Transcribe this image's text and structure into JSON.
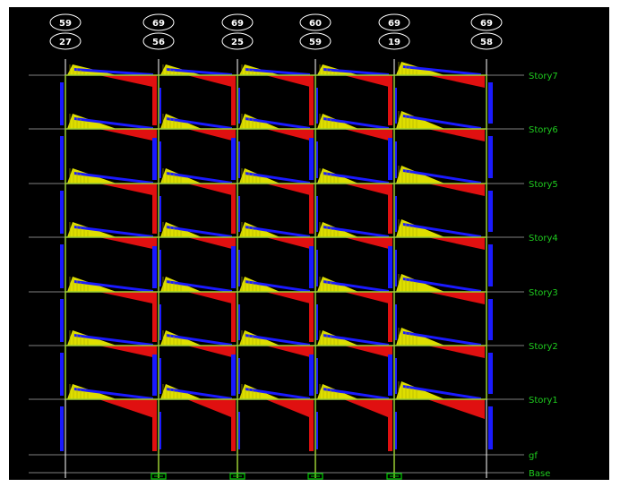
{
  "colors": {
    "background": "#000000",
    "frame_line": "#9acd32",
    "story_line": "#808080",
    "column_line": "#ffffff",
    "story_label": "#1fcc1f",
    "moment_positive": "#dede00",
    "moment_negative": "#e01010",
    "moment_column": "#1a1aff",
    "bubble": "#ffffff",
    "support": "#00cc00"
  },
  "grid_bubbles": [
    {
      "top": "59",
      "bottom": "27"
    },
    {
      "top": "69",
      "bottom": "56"
    },
    {
      "top": "69",
      "bottom": "25"
    },
    {
      "top": "60",
      "bottom": "59"
    },
    {
      "top": "69",
      "bottom": "19"
    },
    {
      "top": "69",
      "bottom": "58"
    }
  ],
  "stories": [
    {
      "label": "Story7"
    },
    {
      "label": "Story6"
    },
    {
      "label": "Story5"
    },
    {
      "label": "Story4"
    },
    {
      "label": "Story3"
    },
    {
      "label": "Story2"
    },
    {
      "label": "Story1"
    },
    {
      "label": "gf"
    },
    {
      "label": "Base"
    }
  ],
  "view": {
    "diagram_type": "frame-elevation-moment-diagram",
    "supports": "base-supports-under-interior-columns"
  }
}
